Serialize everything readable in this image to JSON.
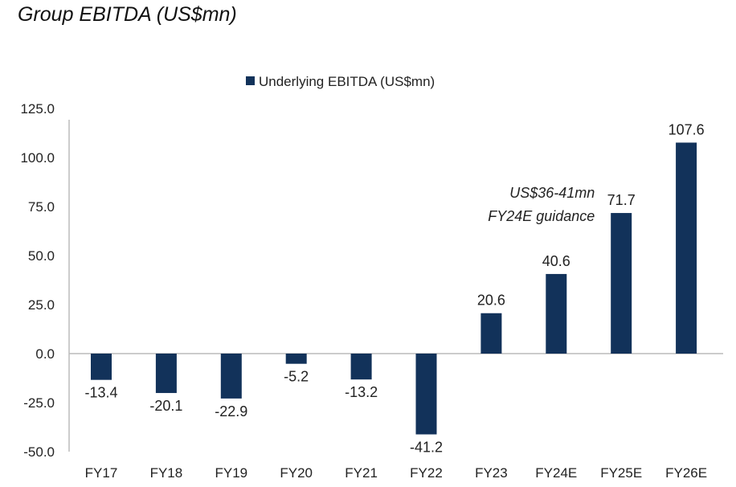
{
  "page_title": "Group EBITDA (US$mn)",
  "chart_data": {
    "type": "bar",
    "title": "Group EBITDA (US$mn)",
    "categories": [
      "FY17",
      "FY18",
      "FY19",
      "FY20",
      "FY21",
      "FY22",
      "FY23",
      "FY24E",
      "FY25E",
      "FY26E"
    ],
    "series": [
      {
        "name": "Underlying EBITDA (US$mn)",
        "values": [
          -13.4,
          -20.1,
          -22.9,
          -5.2,
          -13.2,
          -41.2,
          20.6,
          40.6,
          71.7,
          107.6
        ],
        "color": "#12325a"
      }
    ],
    "data_labels": [
      "-13.4",
      "-20.1",
      "-22.9",
      "-5.2",
      "-13.2",
      "-41.2",
      "20.6",
      "40.6",
      "71.7",
      "107.6"
    ],
    "ylim": [
      -50,
      125
    ],
    "yticks": [
      "125.0",
      "100.0",
      "75.0",
      "50.0",
      "25.0",
      "0.0",
      "-25.0",
      "-50.0"
    ],
    "ytick_values": [
      125,
      100,
      75,
      50,
      25,
      0,
      -25,
      -50
    ],
    "legend_position": "top-center",
    "grid": false,
    "annotation": {
      "lines": [
        "US$36-41mn",
        "FY24E guidance"
      ],
      "category": "FY24E"
    }
  }
}
